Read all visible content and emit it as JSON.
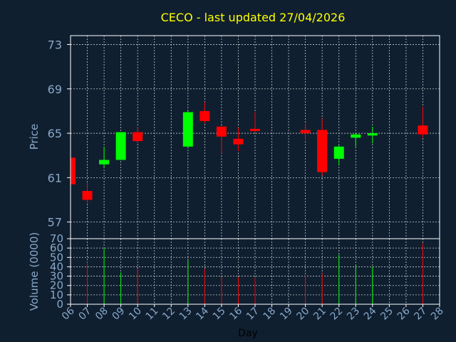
{
  "chart_data": [
    {
      "type": "candlestick",
      "title": "CECO - last updated 27/04/2026",
      "xlabel": "",
      "ylabel": "Price",
      "ylim": [
        55.5,
        73.8
      ],
      "yticks": [
        "73",
        "69",
        "65",
        "61",
        "57"
      ],
      "up_color": "#00ff00",
      "down_color": "#ff0000",
      "candles": [
        {
          "day": "06",
          "open": 62.8,
          "high": 62.9,
          "low": 60.3,
          "close": 60.4
        },
        {
          "day": "07",
          "open": 59.8,
          "high": 60.6,
          "low": 58.7,
          "close": 59.0
        },
        {
          "day": "08",
          "open": 62.2,
          "high": 63.8,
          "low": 61.9,
          "close": 62.6
        },
        {
          "day": "09",
          "open": 62.6,
          "high": 65.1,
          "low": 62.6,
          "close": 65.1
        },
        {
          "day": "10",
          "open": 65.1,
          "high": 65.6,
          "low": 64.1,
          "close": 64.3
        },
        {
          "day": "13",
          "open": 63.8,
          "high": 67.0,
          "low": 63.7,
          "close": 66.9
        },
        {
          "day": "14",
          "open": 67.0,
          "high": 67.8,
          "low": 65.9,
          "close": 66.1
        },
        {
          "day": "15",
          "open": 65.6,
          "high": 65.7,
          "low": 63.2,
          "close": 64.7
        },
        {
          "day": "16",
          "open": 64.5,
          "high": 65.5,
          "low": 63.4,
          "close": 64.0
        },
        {
          "day": "17",
          "open": 65.4,
          "high": 66.9,
          "low": 65.1,
          "close": 65.2
        },
        {
          "day": "20",
          "open": 65.3,
          "high": 65.9,
          "low": 64.4,
          "close": 65.0
        },
        {
          "day": "21",
          "open": 65.3,
          "high": 66.3,
          "low": 61.2,
          "close": 61.5
        },
        {
          "day": "22",
          "open": 62.7,
          "high": 63.9,
          "low": 62.1,
          "close": 63.8
        },
        {
          "day": "23",
          "open": 64.6,
          "high": 65.0,
          "low": 63.8,
          "close": 64.9
        },
        {
          "day": "24",
          "open": 64.8,
          "high": 65.6,
          "low": 64.1,
          "close": 65.0
        },
        {
          "day": "27",
          "open": 65.7,
          "high": 67.4,
          "low": 64.6,
          "close": 64.9
        }
      ]
    },
    {
      "type": "bar",
      "xlabel": "Day",
      "ylabel": "Volume (0000)",
      "ylim": [
        0,
        70
      ],
      "yticks": [
        "70",
        "60",
        "50",
        "40",
        "30",
        "20",
        "10",
        "0"
      ],
      "xticks": [
        "06",
        "07",
        "08",
        "09",
        "10",
        "11",
        "12",
        "13",
        "14",
        "15",
        "16",
        "17",
        "18",
        "19",
        "20",
        "21",
        "22",
        "23",
        "24",
        "25",
        "26",
        "27",
        "28"
      ],
      "bars": [
        {
          "day": "07",
          "value": 45,
          "dir": "down"
        },
        {
          "day": "08",
          "value": 60,
          "dir": "up"
        },
        {
          "day": "09",
          "value": 34,
          "dir": "up"
        },
        {
          "day": "10",
          "value": 38,
          "dir": "down"
        },
        {
          "day": "13",
          "value": 47,
          "dir": "up"
        },
        {
          "day": "14",
          "value": 38,
          "dir": "down"
        },
        {
          "day": "15",
          "value": 29,
          "dir": "down"
        },
        {
          "day": "16",
          "value": 29,
          "dir": "down"
        },
        {
          "day": "17",
          "value": 28,
          "dir": "down"
        },
        {
          "day": "20",
          "value": 31,
          "dir": "down"
        },
        {
          "day": "21",
          "value": 33,
          "dir": "down"
        },
        {
          "day": "22",
          "value": 53,
          "dir": "up"
        },
        {
          "day": "23",
          "value": 42,
          "dir": "up"
        },
        {
          "day": "24",
          "value": 40,
          "dir": "up"
        },
        {
          "day": "27",
          "value": 65,
          "dir": "down"
        }
      ]
    }
  ],
  "colors": {
    "background": "#0f1f30",
    "axis": "#ffffff",
    "grid": "#c8c8c8",
    "label": "#8aa8c8",
    "title": "#ffff00"
  }
}
